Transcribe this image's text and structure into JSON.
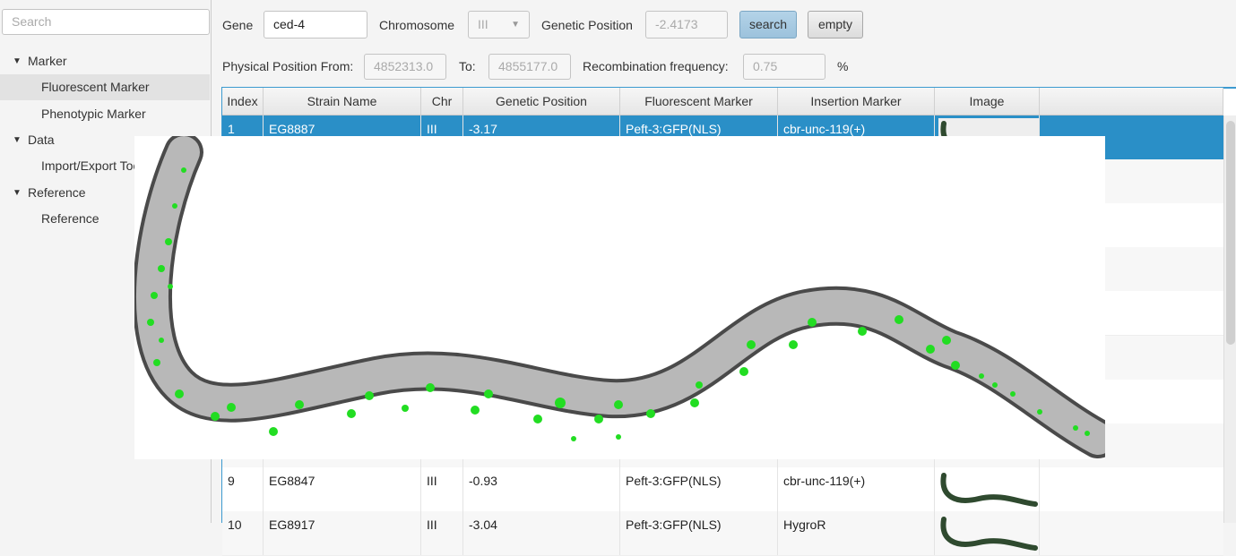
{
  "sidebar": {
    "search_placeholder": "Search",
    "tree": [
      {
        "label": "Marker",
        "children": [
          "Fluorescent Marker",
          "Phenotypic Marker"
        ]
      },
      {
        "label": "Data",
        "children": [
          "Import/Export Tool"
        ]
      },
      {
        "label": "Reference",
        "children": [
          "Reference"
        ]
      }
    ]
  },
  "form": {
    "gene_label": "Gene",
    "gene": "ced-4",
    "chromosome_label": "Chromosome",
    "chromosome": "III",
    "genetic_position_label": "Genetic Position",
    "genetic_position": "-2.4173",
    "search_button": "search",
    "empty_button": "empty",
    "physical_from_label": "Physical Position From:",
    "physical_from": "4852313.0",
    "to_label": "To:",
    "physical_to": "4855177.0",
    "recombination_label": "Recombination frequency:",
    "recombination": "0.75",
    "percent": "%"
  },
  "table": {
    "columns": [
      "Index",
      "Strain Name",
      "Chr",
      "Genetic Position",
      "Fluorescent Marker",
      "Insertion Marker",
      "Image"
    ],
    "rows": [
      [
        "1",
        "EG8887",
        "III",
        "-3.17",
        "Peft-3:GFP(NLS)",
        "cbr-unc-119(+)"
      ],
      [
        "9",
        "EG8847",
        "III",
        "-0.93",
        "Peft-3:GFP(NLS)",
        "cbr-unc-119(+)"
      ],
      [
        "10",
        "EG8917",
        "III",
        "-3.04",
        "Peft-3:GFP(NLS)",
        "HygroR"
      ]
    ]
  }
}
